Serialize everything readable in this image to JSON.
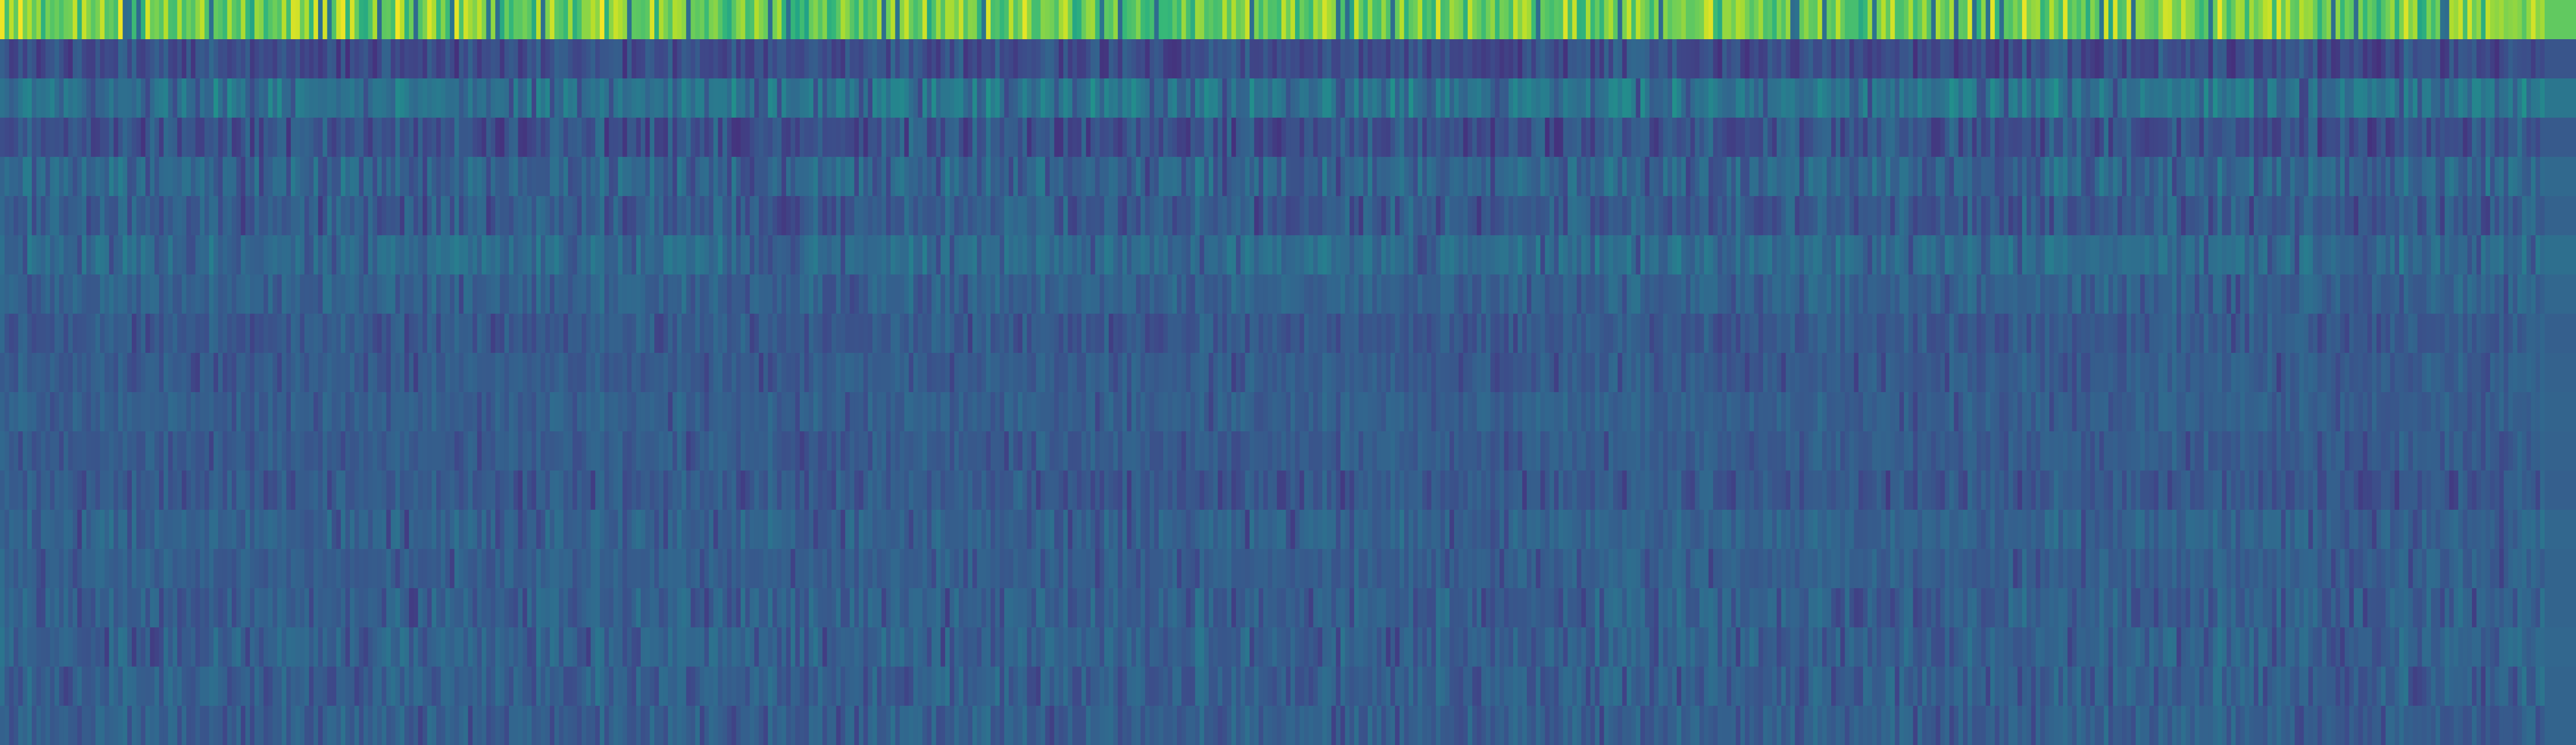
{
  "chart_data": {
    "type": "heatmap",
    "title": "",
    "xlabel": "",
    "ylabel": "",
    "grid": false,
    "legend": "none",
    "colormap": "viridis",
    "colormap_stops": [
      "#440154",
      "#482878",
      "#3e4989",
      "#31688e",
      "#26828e",
      "#1f9e89",
      "#35b779",
      "#6ece58",
      "#b5de2b",
      "#fde725"
    ],
    "n_rows": 19,
    "n_cols": 560,
    "value_range": [
      0,
      1
    ],
    "seed": 7,
    "row_profiles": [
      {
        "mean": 0.78,
        "spread": 0.14,
        "dip": 0.34
      },
      {
        "mean": 0.24,
        "spread": 0.07,
        "dip": 0.14
      },
      {
        "mean": 0.38,
        "spread": 0.09,
        "dip": 0.2
      },
      {
        "mean": 0.26,
        "spread": 0.08,
        "dip": 0.14
      },
      {
        "mean": 0.32,
        "spread": 0.08,
        "dip": 0.18
      },
      {
        "mean": 0.29,
        "spread": 0.07,
        "dip": 0.16
      },
      {
        "mean": 0.35,
        "spread": 0.06,
        "dip": 0.21
      },
      {
        "mean": 0.31,
        "spread": 0.05,
        "dip": 0.2
      },
      {
        "mean": 0.28,
        "spread": 0.05,
        "dip": 0.18
      },
      {
        "mean": 0.29,
        "spread": 0.04,
        "dip": 0.18
      },
      {
        "mean": 0.3,
        "spread": 0.04,
        "dip": 0.19
      },
      {
        "mean": 0.29,
        "spread": 0.04,
        "dip": 0.19
      },
      {
        "mean": 0.28,
        "spread": 0.05,
        "dip": 0.17
      },
      {
        "mean": 0.31,
        "spread": 0.05,
        "dip": 0.18
      },
      {
        "mean": 0.3,
        "spread": 0.04,
        "dip": 0.19
      },
      {
        "mean": 0.3,
        "spread": 0.06,
        "dip": 0.18
      },
      {
        "mean": 0.31,
        "spread": 0.06,
        "dip": 0.18
      },
      {
        "mean": 0.3,
        "spread": 0.06,
        "dip": 0.19
      },
      {
        "mean": 0.3,
        "spread": 0.05,
        "dip": 0.19
      }
    ]
  }
}
